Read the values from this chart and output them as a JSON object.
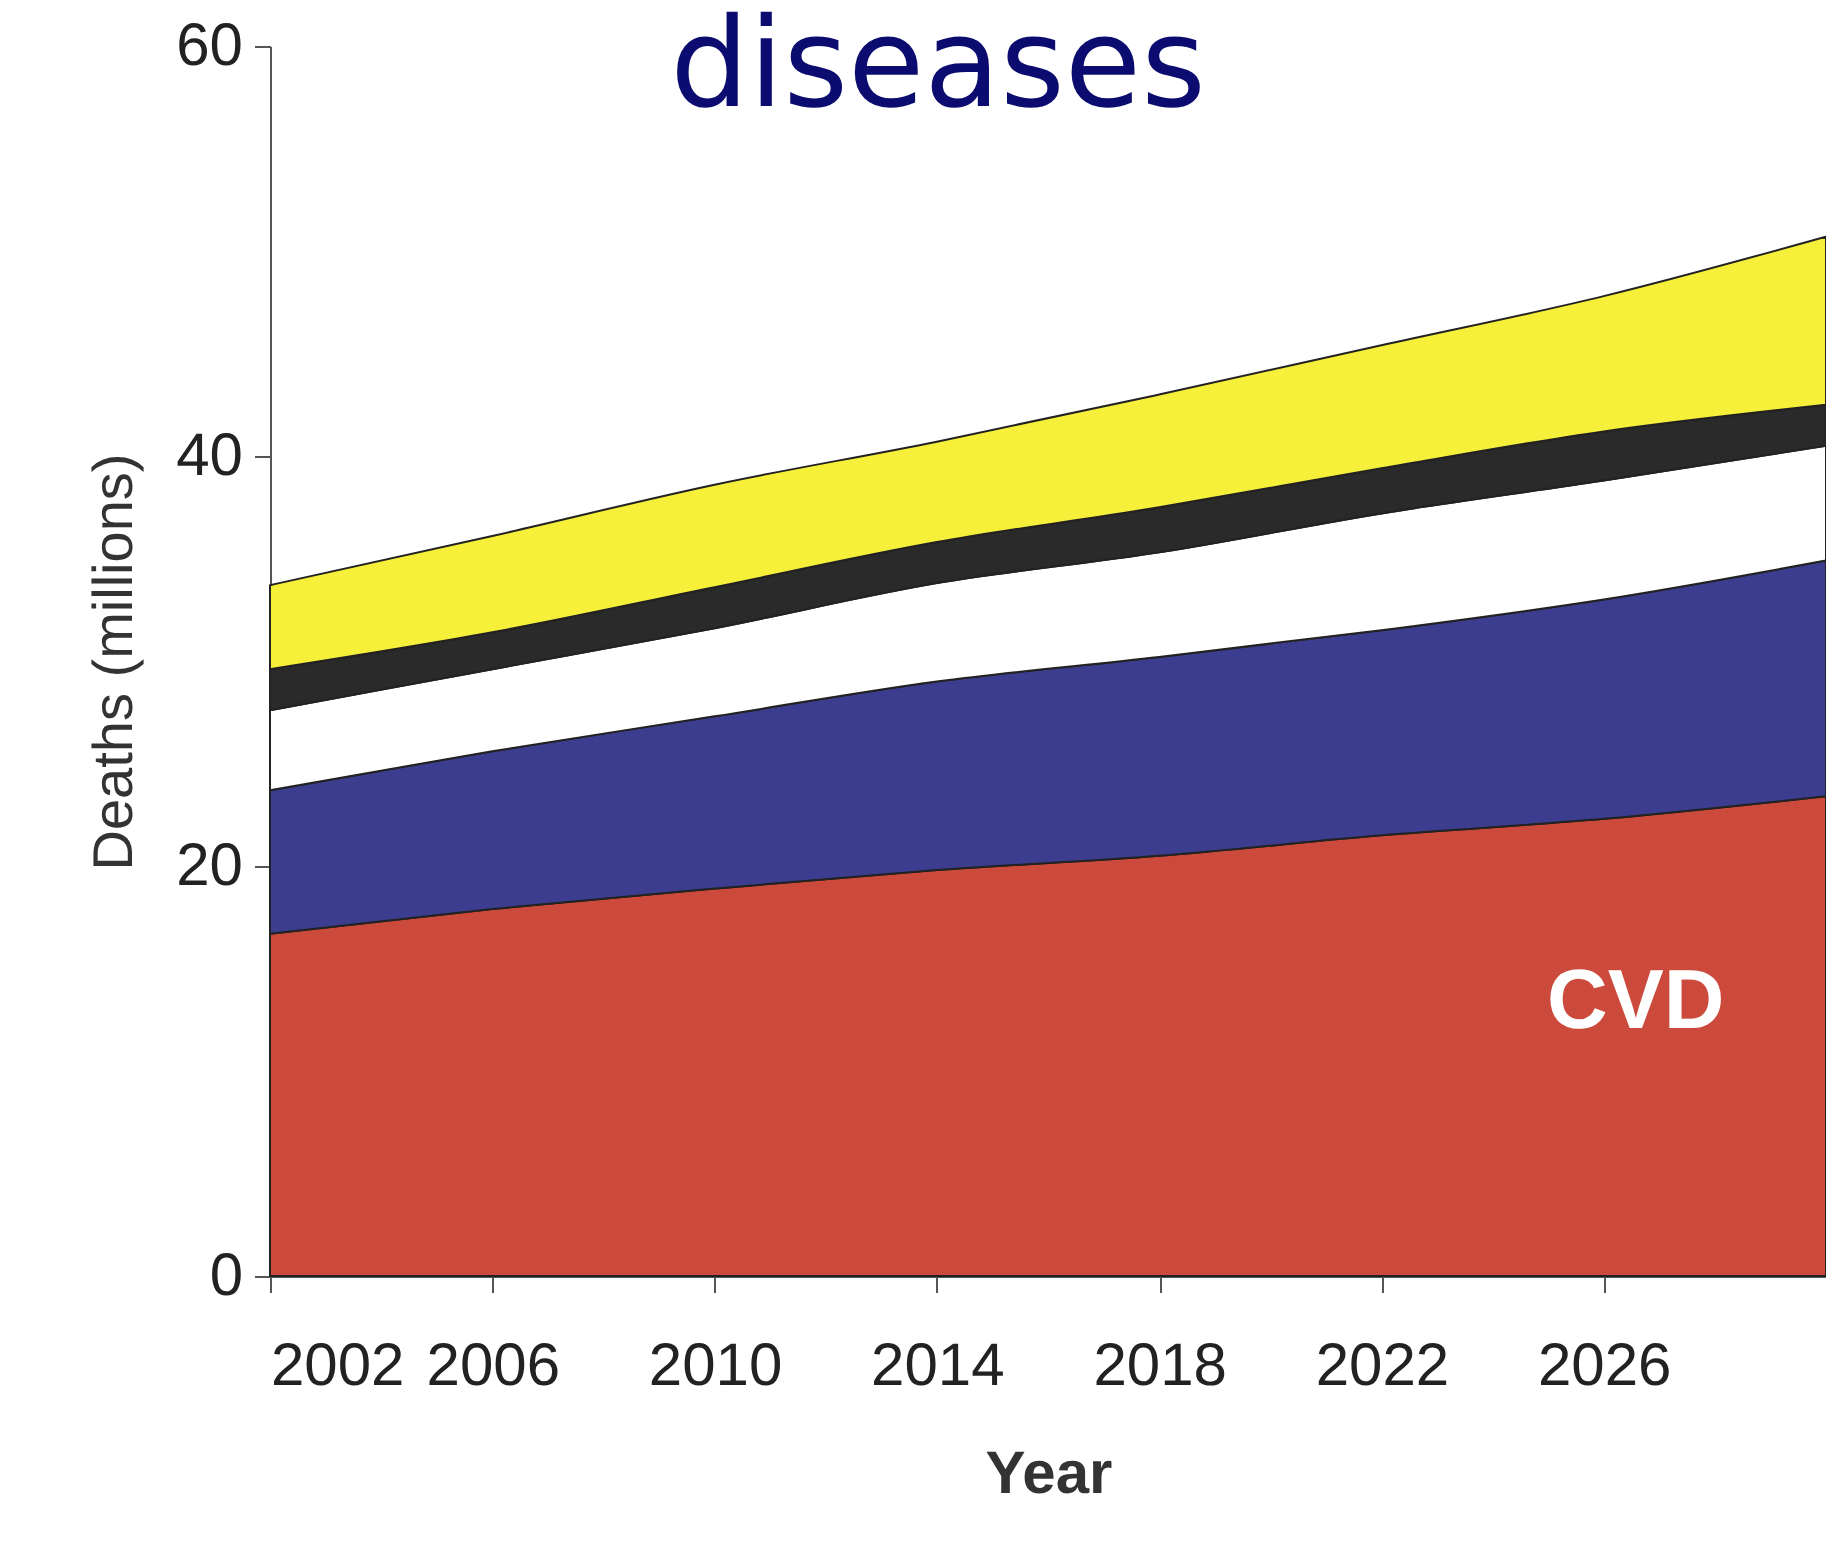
{
  "chart_data": {
    "type": "area",
    "title": "diseases",
    "xlabel": "Year",
    "ylabel": "Deaths (millions)",
    "stacked": true,
    "x": [
      2002,
      2006,
      2010,
      2014,
      2018,
      2022,
      2026,
      2030
    ],
    "series": [
      {
        "name": "CVD",
        "color": "#cc4a3c",
        "values": [
          16.7,
          17.9,
          18.9,
          19.8,
          20.5,
          21.5,
          22.3,
          23.4
        ]
      },
      {
        "color": "#3d3d8f",
        "values": [
          7.0,
          7.7,
          8.4,
          9.2,
          9.7,
          10.0,
          10.7,
          11.5
        ]
      },
      {
        "color": "#ffffff",
        "values": [
          3.9,
          4.0,
          4.3,
          4.8,
          5.1,
          5.7,
          5.8,
          5.6
        ]
      },
      {
        "color": "#2a2a2a",
        "values": [
          2.0,
          1.8,
          2.0,
          2.0,
          2.2,
          2.2,
          2.4,
          2.0
        ]
      },
      {
        "color": "#f7f03a",
        "values": [
          4.1,
          4.7,
          5.0,
          4.9,
          5.5,
          6.0,
          6.6,
          8.2
        ]
      }
    ],
    "xlim": [
      2002,
      2030
    ],
    "xticks": [
      2002,
      2006,
      2010,
      2014,
      2018,
      2022,
      2026
    ],
    "ylim": [
      0,
      60
    ],
    "yticks": [
      0,
      20,
      40,
      60
    ],
    "grid": false,
    "legend": false
  }
}
